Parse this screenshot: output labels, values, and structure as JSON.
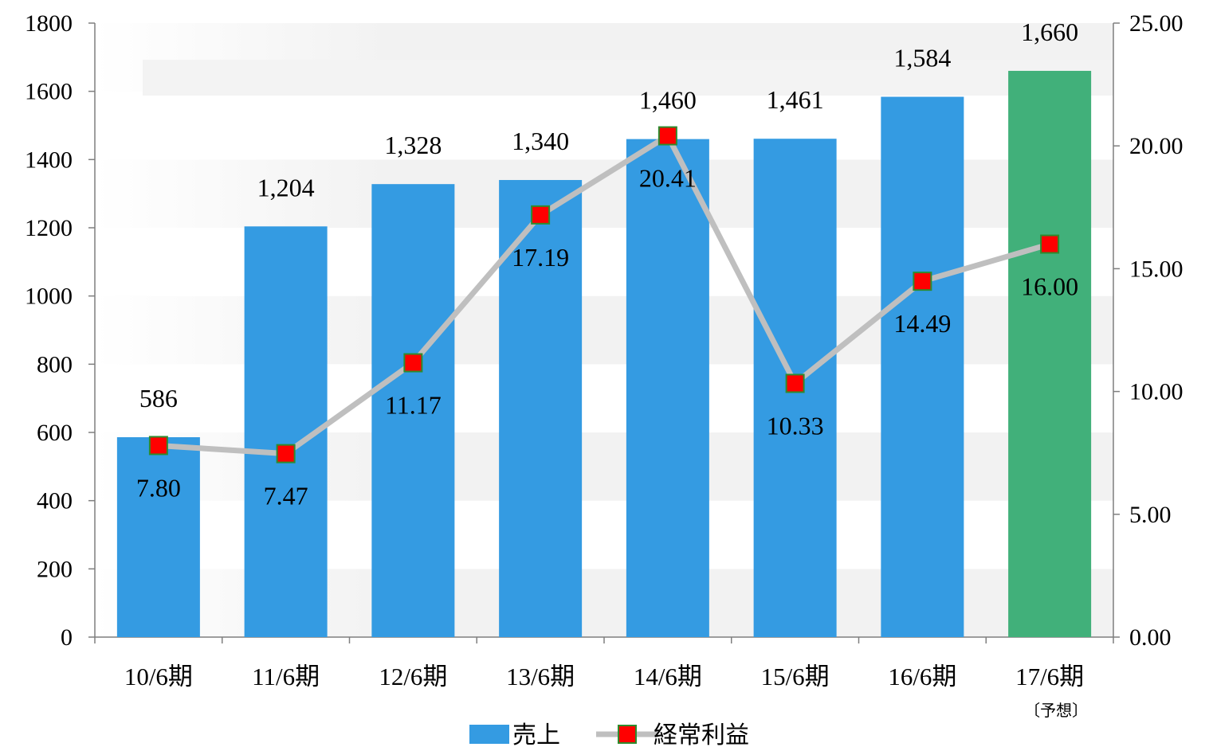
{
  "chart_data": {
    "type": "bar",
    "categories": [
      "10/6期",
      "11/6期",
      "12/6期",
      "13/6期",
      "14/6期",
      "15/6期",
      "16/6期",
      "17/6期"
    ],
    "category_note": {
      "index": 7,
      "text": "〔予想〕"
    },
    "series": [
      {
        "name": "売上",
        "type": "bar",
        "axis": "left",
        "values": [
          586,
          1204,
          1328,
          1340,
          1460,
          1461,
          1584,
          1660
        ],
        "labels": [
          "586",
          "1,204",
          "1,328",
          "1,340",
          "1,460",
          "1,461",
          "1,584",
          "1,660"
        ],
        "color": "#349BE2",
        "highlight": {
          "index": 7,
          "color": "#41B07A"
        }
      },
      {
        "name": "経常利益",
        "type": "line",
        "axis": "right",
        "values": [
          7.8,
          7.47,
          11.17,
          17.19,
          20.41,
          10.33,
          14.49,
          16.0
        ],
        "labels": [
          "7.80",
          "7.47",
          "11.17",
          "17.19",
          "20.41",
          "10.33",
          "14.49",
          "16.00"
        ],
        "line_color": "#BFBFBF",
        "marker_color": "#FF0000",
        "marker_border": "#2E8B2E"
      }
    ],
    "y_left": {
      "min": 0,
      "max": 1800,
      "step": 200,
      "ticks": [
        "0",
        "200",
        "400",
        "600",
        "800",
        "1000",
        "1200",
        "1400",
        "1600",
        "1800"
      ]
    },
    "y_right": {
      "min": 0,
      "max": 25,
      "step": 5,
      "ticks": [
        "0.00",
        "5.00",
        "10.00",
        "15.00",
        "20.00",
        "25.00"
      ]
    },
    "legend_position": "bottom",
    "grid": false
  }
}
